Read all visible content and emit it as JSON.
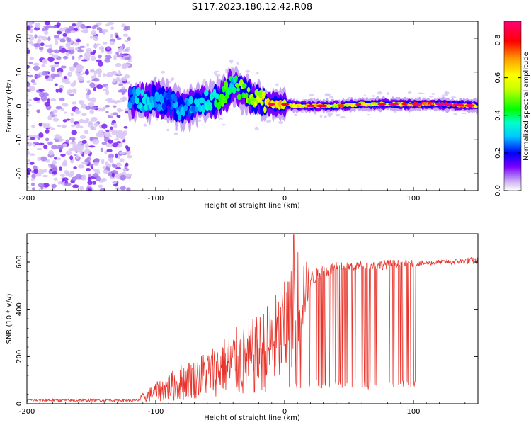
{
  "title": "S117.2023.180.12.42.R08",
  "chart_data": [
    {
      "type": "heatmap",
      "xlabel": "Height of straight line (km)",
      "ylabel": "Frequency (Hz)",
      "xlim": [
        -200,
        150
      ],
      "ylim": [
        -25,
        25
      ],
      "xticks": [
        -200,
        -100,
        0,
        100
      ],
      "yticks": [
        -20,
        -10,
        0,
        10,
        20
      ],
      "colorbar": {
        "label": "Normalized spectral amplitude",
        "range": [
          0.0,
          0.9
        ],
        "ticks": [
          0.0,
          0.2,
          0.4,
          0.6,
          0.8
        ]
      },
      "ridge": {
        "x": [
          -120,
          -110,
          -100,
          -90,
          -80,
          -70,
          -60,
          -50,
          -45,
          -40,
          -35,
          -30,
          -25,
          -20,
          -15,
          -10,
          -5,
          0,
          10,
          20,
          40,
          60,
          80,
          100,
          120,
          150
        ],
        "frequency": [
          2.5,
          1.5,
          2.0,
          1.0,
          -1.0,
          0.0,
          1.5,
          2.5,
          4.0,
          6.5,
          5.0,
          4.0,
          2.5,
          1.5,
          1.0,
          0.5,
          0.5,
          0.5,
          0.0,
          0.0,
          0.0,
          0.5,
          0.5,
          0.5,
          0.5,
          0.0
        ],
        "amplitude": [
          0.3,
          0.35,
          0.3,
          0.25,
          0.3,
          0.3,
          0.35,
          0.45,
          0.5,
          0.35,
          0.55,
          0.5,
          0.55,
          0.6,
          0.7,
          0.75,
          0.7,
          0.7,
          0.65,
          0.7,
          0.6,
          0.65,
          0.65,
          0.85,
          0.8,
          0.75
        ]
      },
      "noise_region": {
        "x_from": -200,
        "x_to": -120,
        "amplitude": 0.1
      }
    },
    {
      "type": "line",
      "xlabel": "Height of straight line (km)",
      "ylabel": "SNR (10 * v/v)",
      "xlim": [
        -200,
        150
      ],
      "ylim": [
        0,
        720
      ],
      "xticks": [
        -200,
        -100,
        0,
        100
      ],
      "yticks": [
        0,
        200,
        400,
        600
      ],
      "series": [
        {
          "color": "#e8352c",
          "x": [
            -200,
            -180,
            -160,
            -140,
            -120,
            -115,
            -110,
            -100,
            -90,
            -80,
            -70,
            -60,
            -50,
            -40,
            -30,
            -20,
            -10,
            0,
            7,
            10,
            20,
            30,
            40,
            50,
            60,
            70,
            80,
            90,
            100,
            110,
            120,
            130,
            140,
            150
          ],
          "mean": [
            15,
            15,
            14,
            15,
            14,
            14,
            25,
            50,
            70,
            90,
            110,
            130,
            150,
            170,
            180,
            210,
            250,
            300,
            400,
            430,
            530,
            560,
            575,
            580,
            585,
            585,
            590,
            595,
            595,
            595,
            600,
            600,
            605,
            605
          ],
          "spread": [
            6,
            6,
            6,
            6,
            6,
            6,
            20,
            40,
            60,
            80,
            90,
            100,
            120,
            150,
            160,
            170,
            200,
            220,
            250,
            260,
            40,
            30,
            25,
            20,
            20,
            20,
            20,
            15,
            15,
            10,
            10,
            12,
            15,
            15
          ]
        }
      ]
    }
  ]
}
